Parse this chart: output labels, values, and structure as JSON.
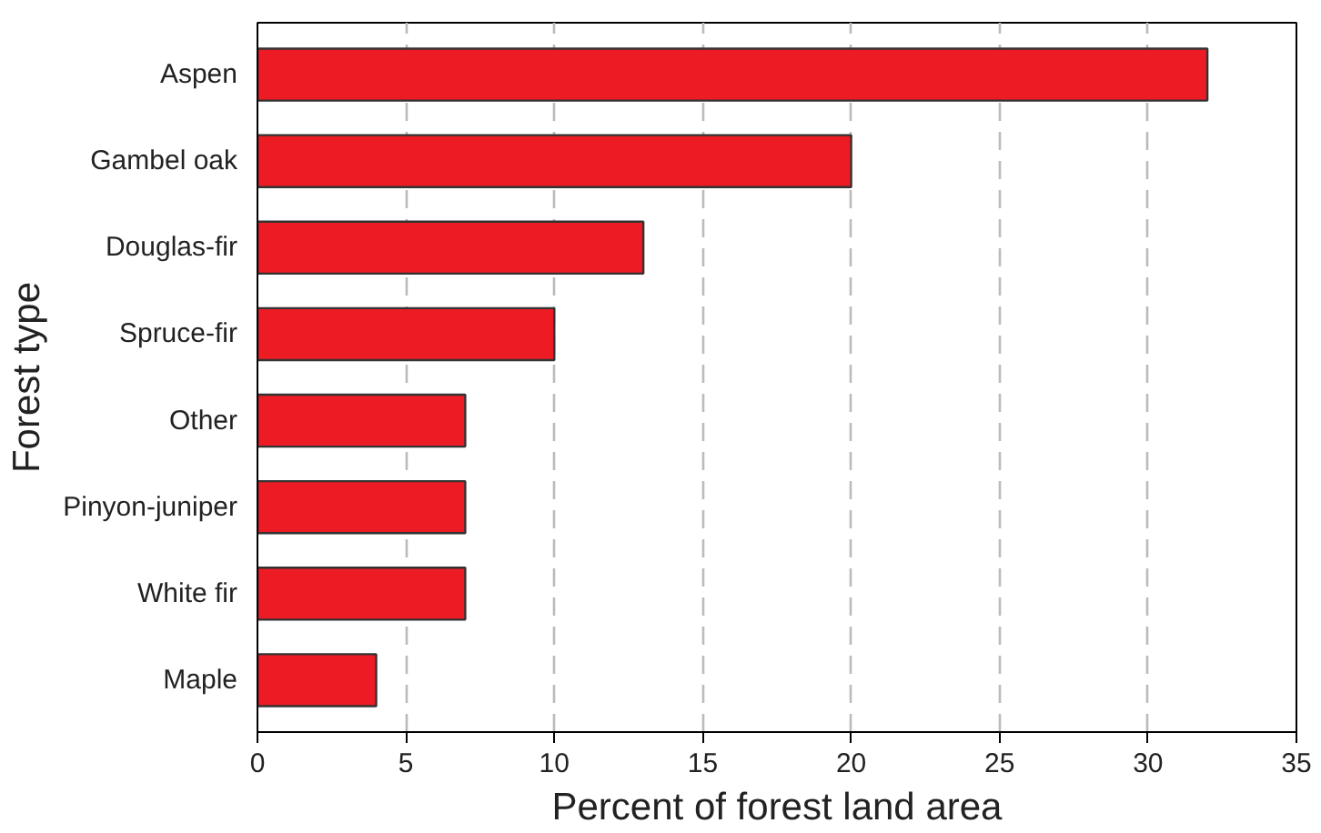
{
  "chart_data": {
    "type": "bar",
    "orientation": "horizontal",
    "xlabel": "Percent of forest land area",
    "ylabel": "Forest type",
    "categories": [
      "Aspen",
      "Gambel oak",
      "Douglas-fir",
      "Spruce-fir",
      "Other",
      "Pinyon-juniper",
      "White fir",
      "Maple"
    ],
    "values": [
      32,
      20,
      13,
      10,
      7,
      7,
      7,
      4
    ],
    "color": "#ed1c24",
    "xlim": [
      0,
      35
    ],
    "xticks": [
      0,
      5,
      10,
      15,
      20,
      25,
      30,
      35
    ],
    "grid": "x"
  }
}
